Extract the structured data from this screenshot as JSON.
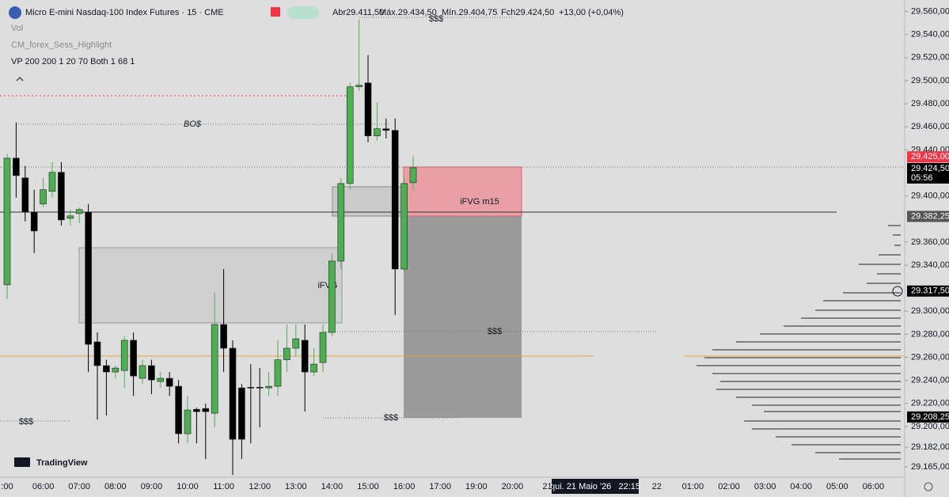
{
  "chart_data": {
    "type": "candlestick",
    "title": "Micro E-mini Nasdaq-100 Index Futures · 15 · CME",
    "ohlc_header": [
      "Abr29.411,50",
      "Máx.29.434,50",
      "Mín.29.404,75",
      "Fch29.424,50",
      "+13,00 (+0,04%)"
    ],
    "indicators": [
      "Vol",
      "CM_forex_Sess_Highlight",
      "VP 200 200 1 20 70 Both 1 68 1"
    ],
    "brand": "TradingView",
    "crosshair_label": "qui. 21 Maio '26   22:15",
    "countdown": "05:56",
    "annotations": [
      "BO$",
      "$$$",
      "iFVG",
      "iFVG m15",
      "$$$",
      "$$$",
      "$$$"
    ],
    "up_color": "#4caf50",
    "down_color": "#000000",
    "grid": false,
    "categories": [
      ":00",
      null,
      null,
      null,
      "06:00",
      null,
      null,
      null,
      "07:00",
      null,
      null,
      null,
      "08:00",
      null,
      null,
      null,
      "09:00",
      null,
      null,
      null,
      "10:00",
      null,
      null,
      null,
      "11:00",
      null,
      null,
      null,
      "12:00",
      null,
      null,
      null,
      "13:00",
      null,
      null,
      null,
      "14:00",
      null,
      null,
      null,
      "15:00",
      null,
      null,
      null,
      "16:00",
      null,
      null,
      null,
      "17:00",
      null,
      null,
      null,
      "19:00",
      null,
      null,
      null,
      "20:00",
      null,
      null,
      null,
      "21:",
      null,
      null,
      null,
      null,
      null,
      null,
      null,
      null,
      null,
      null,
      null,
      "22",
      null,
      null,
      null,
      "01:00",
      null,
      null,
      null,
      "02:00",
      null,
      null,
      null,
      "03:00",
      null,
      null,
      null,
      "04:00",
      null,
      null,
      null,
      "05:00",
      null,
      null,
      null,
      "06:00",
      null
    ],
    "open": [
      29322.9,
      29432.8,
      29415.7,
      29386.1,
      29393.0,
      29404.0,
      29420.5,
      29380.6,
      29384.7,
      29386.1,
      29273.4,
      29252.8,
      29247.3,
      29248.6,
      29274.8,
      29241.8,
      29252.8,
      29239.0,
      29241.8,
      29234.9,
      29193.7,
      29214.9,
      29215.6,
      29211.5,
      29288.5,
      29267.9,
      29233.5,
      29234.0,
      29234.0,
      29233.5,
      29234.9,
      29257.9,
      29267.9,
      29274.8,
      29247.3,
      29255.5,
      29281.6,
      29343.5,
      29410.8,
      29494.7,
      29498.1,
      29452.1,
      29458.3,
      29456.9,
      29336.6,
      29411.5,
      null,
      null,
      null,
      null,
      null,
      null,
      null,
      null,
      null,
      null,
      null,
      null,
      null,
      null,
      null,
      null,
      null,
      null,
      null,
      null,
      null,
      null,
      null,
      null,
      null,
      null,
      null,
      null,
      null,
      null,
      null,
      null,
      null,
      null,
      null,
      null,
      null,
      null,
      null,
      null,
      null,
      null,
      null,
      null,
      null,
      null,
      null,
      null,
      null,
      null,
      null,
      null
    ],
    "high": [
      29436.3,
      29463.8,
      29426.0,
      29405.4,
      29415.7,
      29429.4,
      29429.4,
      29388.2,
      29390.2,
      29393.0,
      29281.6,
      29257.9,
      29252.8,
      29278.2,
      29281.6,
      29257.9,
      29257.9,
      29247.3,
      29247.3,
      29240.4,
      29226.6,
      29216.3,
      29219.8,
      29316.0,
      29336.6,
      29274.8,
      29236.9,
      29254.1,
      29250.7,
      29247.3,
      29274.8,
      29288.5,
      29288.5,
      29288.5,
      29267.9,
      29288.5,
      29350.4,
      29415.7,
      29498.1,
      29553.1,
      29522.2,
      29481.0,
      29467.2,
      29467.2,
      29415.7,
      29434.5,
      null,
      null,
      null,
      null,
      null,
      null,
      null,
      null,
      null,
      null,
      null,
      null,
      null,
      null,
      null,
      null,
      null,
      null,
      null,
      null,
      null,
      null,
      null,
      null,
      null,
      null,
      null,
      null,
      null,
      null,
      null,
      null,
      null,
      null,
      null,
      null,
      null,
      null,
      null,
      null,
      null,
      null,
      null,
      null,
      null,
      null,
      null,
      null,
      null,
      null,
      null,
      null
    ],
    "low": [
      29310.5,
      29398.5,
      29377.9,
      29350.4,
      29390.2,
      29398.5,
      29374.4,
      29374.4,
      29376.5,
      29247.3,
      29206.0,
      29209.5,
      29241.8,
      29233.5,
      29226.6,
      29236.9,
      29228.0,
      29233.5,
      29226.6,
      29185.4,
      29185.4,
      29185.4,
      29171.7,
      29199.2,
      29247.3,
      29157.9,
      29171.7,
      29185.4,
      29199.2,
      29226.6,
      29226.6,
      29247.3,
      29261.0,
      29212.9,
      29243.8,
      29247.3,
      29278.2,
      29336.6,
      29405.4,
      29491.3,
      29446.6,
      29448.0,
      29450.0,
      29296.8,
      29333.2,
      29404.75,
      null,
      null,
      null,
      null,
      null,
      null,
      null,
      null,
      null,
      null,
      null,
      null,
      null,
      null,
      null,
      null,
      null,
      null,
      null,
      null,
      null,
      null,
      null,
      null,
      null,
      null,
      null,
      null,
      null,
      null,
      null,
      null,
      null,
      null,
      null,
      null,
      null,
      null,
      null,
      null,
      null,
      null,
      null,
      null,
      null,
      null,
      null,
      null,
      null,
      null,
      null,
      null
    ],
    "close": [
      29432.8,
      29417.7,
      29386.1,
      29369.6,
      29405.4,
      29420.5,
      29379.2,
      29382.7,
      29388.2,
      29271.3,
      29252.8,
      29247.3,
      29250.7,
      29274.8,
      29243.8,
      29252.8,
      29240.4,
      29241.8,
      29234.9,
      29193.7,
      29214.3,
      29212.9,
      29212.9,
      29288.5,
      29267.9,
      29188.9,
      29188.9,
      29233.5,
      29233.5,
      29234.9,
      29257.9,
      29267.9,
      29276.1,
      29247.3,
      29254.1,
      29281.6,
      29343.5,
      29410.8,
      29494.7,
      29496.1,
      29452.1,
      29458.3,
      29456.9,
      29336.6,
      29410.8,
      29424.5,
      null,
      null,
      null,
      null,
      null,
      null,
      null,
      null,
      null,
      null,
      null,
      null,
      null,
      null,
      null,
      null,
      null,
      null,
      null,
      null,
      null,
      null,
      null,
      null,
      null,
      null,
      null,
      null,
      null,
      null,
      null,
      null,
      null,
      null,
      null,
      null,
      null,
      null,
      null,
      null,
      null,
      null,
      null,
      null,
      null,
      null,
      null,
      null,
      null,
      null,
      null,
      null
    ],
    "ylim": [
      29156,
      29570
    ],
    "yticks": [
      {
        "value": 29560,
        "label": "29.560,00"
      },
      {
        "value": 29540,
        "label": "29.540,00"
      },
      {
        "value": 29520,
        "label": "29.520,00"
      },
      {
        "value": 29500,
        "label": "29.500,00"
      },
      {
        "value": 29480,
        "label": "29.480,00"
      },
      {
        "value": 29460,
        "label": "29.460,00"
      },
      {
        "value": 29440,
        "label": "29.440,00"
      },
      {
        "value": 29400,
        "label": "29.400,00"
      },
      {
        "value": 29360,
        "label": "29.360,00"
      },
      {
        "value": 29340,
        "label": "29.340,00"
      },
      {
        "value": 29300,
        "label": "29.300,00"
      },
      {
        "value": 29280,
        "label": "29.280,00"
      },
      {
        "value": 29260,
        "label": "29.260,00"
      },
      {
        "value": 29240,
        "label": "29.240,00"
      },
      {
        "value": 29220,
        "label": "29.220,00"
      },
      {
        "value": 29200,
        "label": "29.200,00"
      },
      {
        "value": 29182,
        "label": "29.182,00"
      },
      {
        "value": 29165,
        "label": "29.165,00"
      }
    ],
    "price_labels": [
      {
        "value": 29425,
        "label": "29.425,00",
        "color": "#f23645"
      },
      {
        "value": 29424.5,
        "label": "29.424,50",
        "color": "#000000"
      },
      {
        "value": 29382.25,
        "label": "29.382,25",
        "color": "#555555"
      },
      {
        "value": 29317.5,
        "label": "29.317,50",
        "color": "#000000"
      },
      {
        "value": 29208.25,
        "label": "29.208,25",
        "color": "#000000"
      }
    ]
  }
}
